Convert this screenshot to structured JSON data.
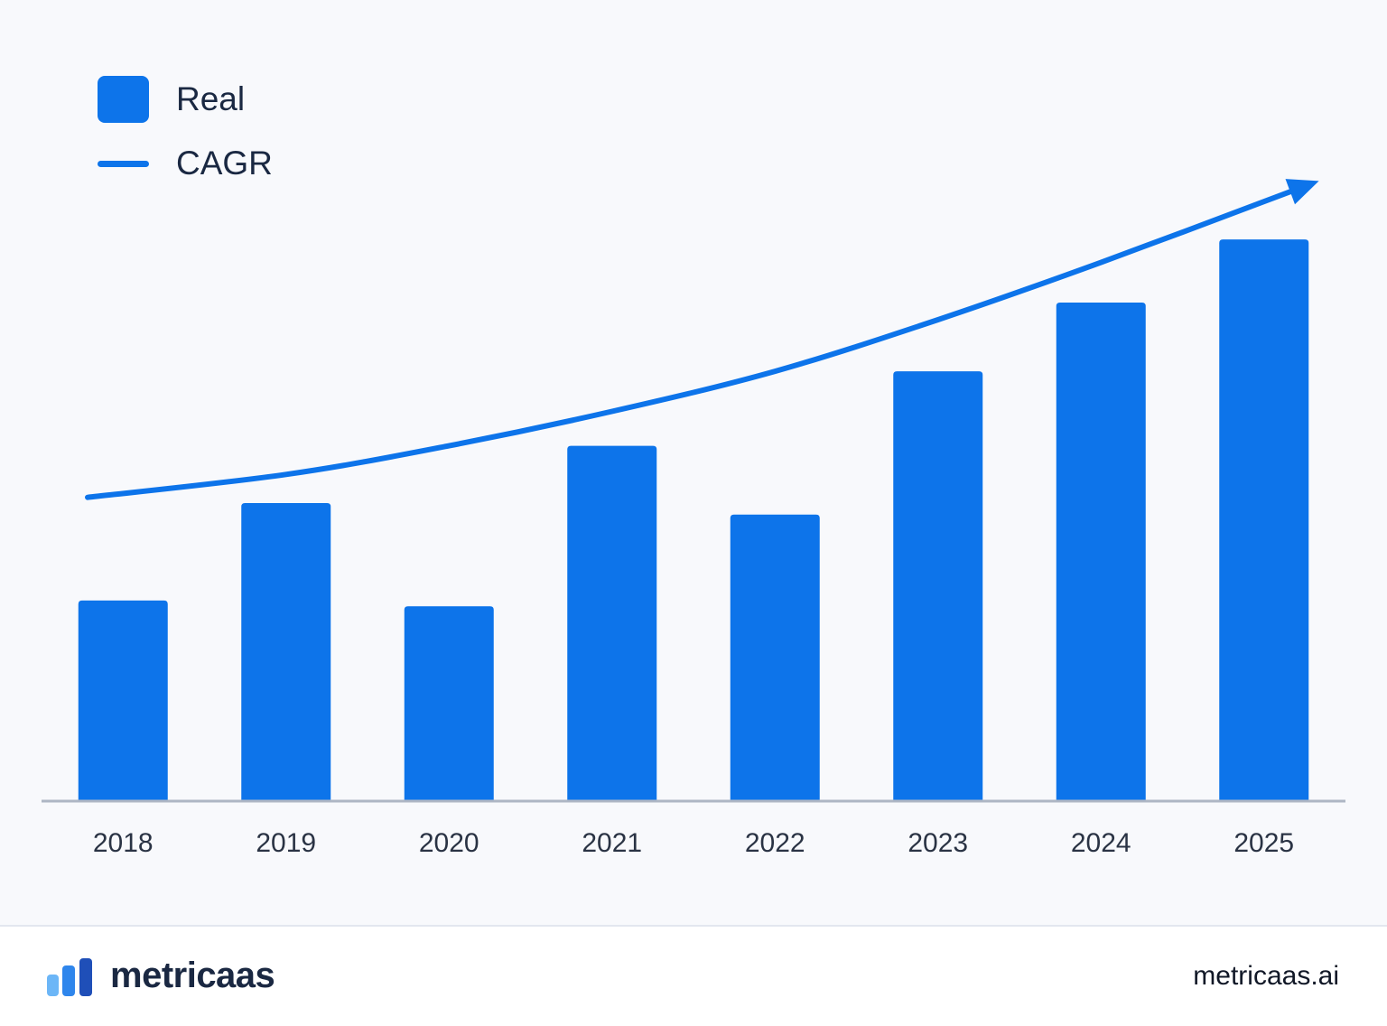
{
  "legend": {
    "real_label": "Real",
    "cagr_label": "CAGR"
  },
  "colors": {
    "bar": "#0d74ea",
    "line": "#0d74ea",
    "axis": "#aeb6c4",
    "text": "#2a3344"
  },
  "chart_data": {
    "type": "bar",
    "title": "",
    "xlabel": "",
    "ylabel": "",
    "categories": [
      "2018",
      "2019",
      "2020",
      "2021",
      "2022",
      "2023",
      "2024",
      "2025"
    ],
    "series": [
      {
        "name": "Real",
        "type": "bar",
        "values": [
          35,
          52,
          34,
          62,
          50,
          75,
          87,
          98
        ]
      },
      {
        "name": "CAGR",
        "type": "line",
        "values": [
          53,
          57,
          62,
          68,
          75,
          84,
          94,
          107
        ],
        "arrow": true
      }
    ],
    "ylim": [
      0,
      110
    ],
    "grid": false,
    "legend_position": "top-left"
  },
  "footer": {
    "brand_name": "metricaas",
    "url": "metricaas.ai"
  }
}
